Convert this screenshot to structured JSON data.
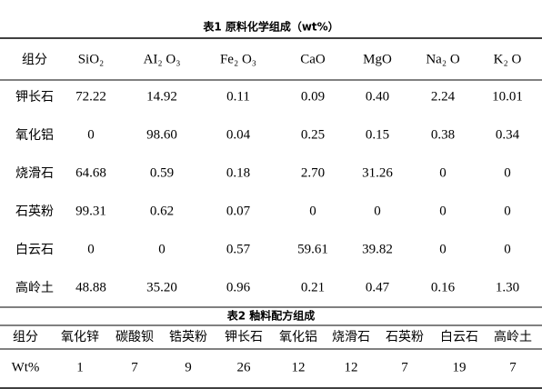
{
  "table1": {
    "title": "表1 原料化学组成（wt%）",
    "header": [
      "组分",
      "SiO₂",
      "AI₂ O₃",
      "Fe₂ O₃",
      "CaO",
      "MgO",
      "Na₂ O",
      "K₂ O"
    ],
    "rows": [
      [
        "钾长石",
        "72.22",
        "14.92",
        "0.11",
        "0.09",
        "0.40",
        "2.24",
        "10.01"
      ],
      [
        "氧化铝",
        "0",
        "98.60",
        "0.04",
        "0.25",
        "0.15",
        "0.38",
        "0.34"
      ],
      [
        "烧滑石",
        "64.68",
        "0.59",
        "0.18",
        "2.70",
        "31.26",
        "0",
        "0"
      ],
      [
        "石英粉",
        "99.31",
        "0.62",
        "0.07",
        "0",
        "0",
        "0",
        "0"
      ],
      [
        "白云石",
        "0",
        "0",
        "0.57",
        "59.61",
        "39.82",
        "0",
        "0"
      ],
      [
        "高岭土",
        "48.88",
        "35.20",
        "0.96",
        "0.21",
        "0.47",
        "0.16",
        "1.30"
      ]
    ]
  },
  "table2": {
    "title": "表2 釉料配方组成",
    "header": [
      "组分",
      "氧化锌",
      "碳酸钡",
      "锆英粉",
      "钾长石",
      "氧化铝",
      "烧滑石",
      "石英粉",
      "白云石",
      "高岭土"
    ],
    "rows": [
      [
        "Wt%",
        "1",
        "7",
        "9",
        "26",
        "12",
        "12",
        "7",
        "19",
        "7"
      ]
    ]
  }
}
